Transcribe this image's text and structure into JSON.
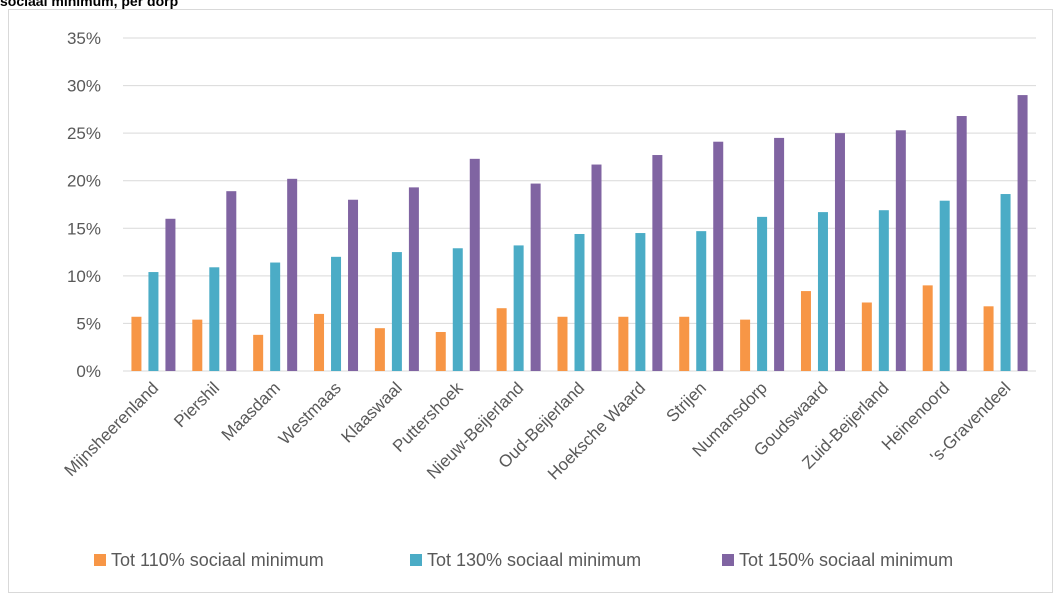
{
  "header": {
    "title": "sociaal minimum, per dorp"
  },
  "chart_data": {
    "type": "bar",
    "title": "",
    "xlabel": "",
    "ylabel": "",
    "ylim": [
      0,
      35
    ],
    "yticks": [
      "0%",
      "5%",
      "10%",
      "15%",
      "20%",
      "25%",
      "30%",
      "35%"
    ],
    "ytick_values": [
      0,
      5,
      10,
      15,
      20,
      25,
      30,
      35
    ],
    "grid": true,
    "legend_position": "bottom",
    "categories": [
      "Mijnsheerenland",
      "Piershil",
      "Maasdam",
      "Westmaas",
      "Klaaswaal",
      "Puttershoek",
      "Nieuw-Beijerland",
      "Oud-Beijerland",
      "Hoeksche Waard",
      "Strijen",
      "Numansdorp",
      "Goudswaard",
      "Zuid-Beijerland",
      "Heinenoord",
      "'s-Gravendeel"
    ],
    "series": [
      {
        "name": "Tot 110% sociaal minimum",
        "color": "#f79646",
        "values": [
          5.7,
          5.4,
          3.8,
          6.0,
          4.5,
          4.1,
          6.6,
          5.7,
          5.7,
          5.7,
          5.4,
          8.4,
          7.2,
          9.0,
          6.8
        ]
      },
      {
        "name": "Tot 130% sociaal minimum",
        "color": "#4bacc6",
        "values": [
          10.4,
          10.9,
          11.4,
          12.0,
          12.5,
          12.9,
          13.2,
          14.4,
          14.5,
          14.7,
          16.2,
          16.7,
          16.9,
          17.9,
          18.6
        ]
      },
      {
        "name": "Tot 150% sociaal minimum",
        "color": "#8064a2",
        "values": [
          16.0,
          18.9,
          20.2,
          18.0,
          19.3,
          22.3,
          19.7,
          21.7,
          22.7,
          24.1,
          24.5,
          25.0,
          25.3,
          26.8,
          29.0
        ]
      }
    ]
  }
}
